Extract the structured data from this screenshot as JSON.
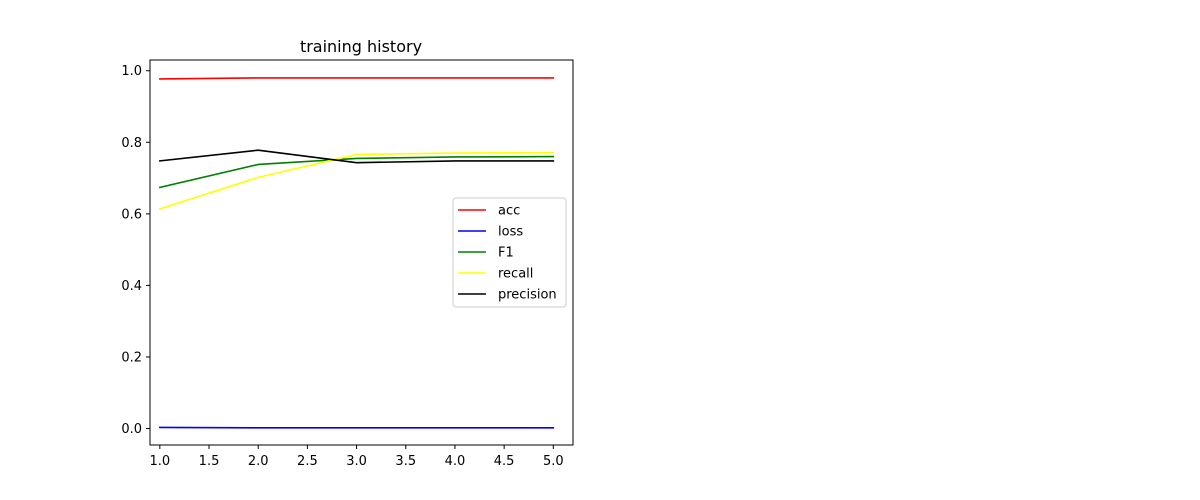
{
  "chart_data": {
    "type": "line",
    "title": "training history",
    "xlabel": "",
    "ylabel": "",
    "xlim": [
      0.9,
      5.2
    ],
    "ylim": [
      -0.046,
      1.03
    ],
    "x_ticks": [
      "1.0",
      "1.5",
      "2.0",
      "2.5",
      "3.0",
      "3.5",
      "4.0",
      "4.5",
      "5.0"
    ],
    "y_ticks": [
      "0.0",
      "0.2",
      "0.4",
      "0.6",
      "0.8",
      "1.0"
    ],
    "x": [
      1,
      2,
      3,
      4,
      5
    ],
    "series": [
      {
        "name": "acc",
        "color": "#ff0000",
        "values": [
          0.977,
          0.98,
          0.98,
          0.98,
          0.98
        ]
      },
      {
        "name": "loss",
        "color": "#0000ff",
        "values": [
          0.003,
          0.002,
          0.002,
          0.002,
          0.002
        ]
      },
      {
        "name": "F1",
        "color": "#008000",
        "values": [
          0.674,
          0.738,
          0.755,
          0.759,
          0.76
        ]
      },
      {
        "name": "recall",
        "color": "#ffff00",
        "values": [
          0.614,
          0.702,
          0.766,
          0.77,
          0.771
        ]
      },
      {
        "name": "precision",
        "color": "#000000",
        "values": [
          0.748,
          0.778,
          0.743,
          0.748,
          0.748
        ]
      }
    ],
    "grid": false,
    "legend_position": "center-right"
  }
}
